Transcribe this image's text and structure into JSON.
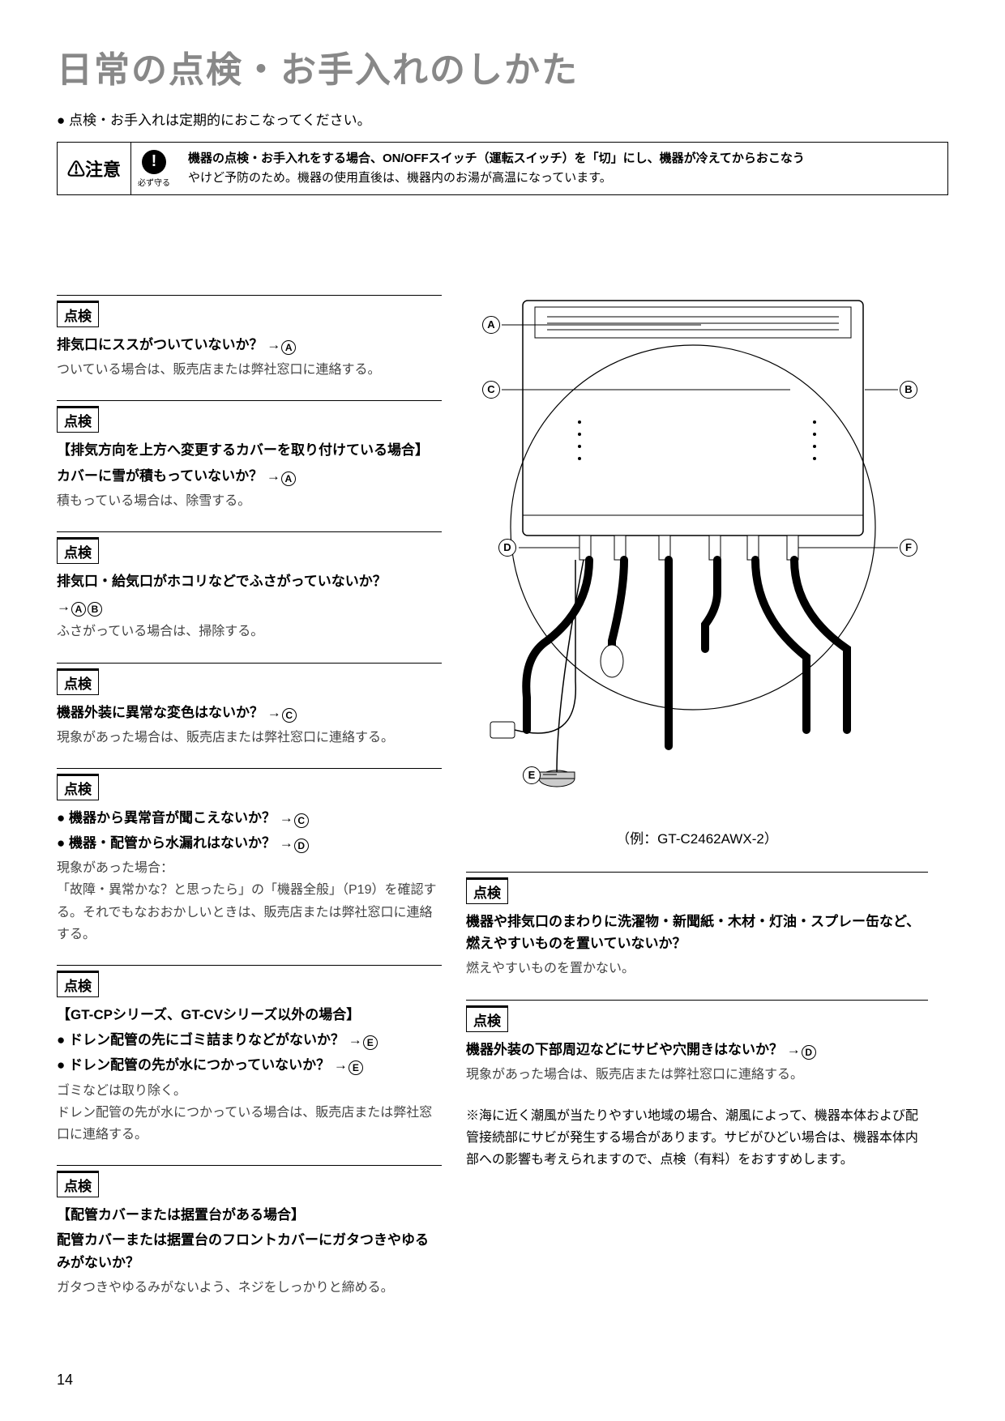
{
  "title": "日常の点検・お手入れのしかた",
  "intro": "● 点検・お手入れは定期的におこなってください。",
  "caution": {
    "label": "⚠注意",
    "icon": "!",
    "icon_label": "必ず守る",
    "line1": "機器の点検・お手入れをする場合、ON/OFFスイッチ（運転スイッチ）を「切」にし、機器が冷えてからおこなう",
    "line2": "やけど予防のため。機器の使用直後は、機器内のお湯が高温になっています。"
  },
  "tenken_tag": "点検",
  "left": [
    {
      "title": "排気口にススがついていないか？ →",
      "refs": [
        "A"
      ],
      "body": "ついている場合は、販売店または弊社窓口に連絡する。"
    },
    {
      "pre": "【排気方向を上方へ変更するカバーを取り付けている場合】",
      "title": "カバーに雪が積もっていないか？ →",
      "refs": [
        "A"
      ],
      "body": "積もっている場合は、除雪する。"
    },
    {
      "title": "排気口・給気口がホコリなどでふさがっていないか？",
      "title2": "→",
      "refs": [
        "A",
        "B"
      ],
      "body": "ふさがっている場合は、掃除する。"
    },
    {
      "title": "機器外装に異常な変色はないか？ →",
      "refs": [
        "C"
      ],
      "body": "現象があった場合は、販売店または弊社窓口に連絡する。"
    },
    {
      "bullets": [
        {
          "t": "● 機器から異常音が聞こえないか？ →",
          "r": [
            "C"
          ]
        },
        {
          "t": "● 機器・配管から水漏れはないか？ →",
          "r": [
            "D"
          ]
        }
      ],
      "body": "現象があった場合：\n「故障・異常かな？と思ったら」の「機器全般」（P19）を確認する。それでもなおおかしいときは、販売店または弊社窓口に連絡する。"
    },
    {
      "pre": "【GT-CPシリーズ、GT-CVシリーズ以外の場合】",
      "bullets": [
        {
          "t": "● ドレン配管の先にゴミ詰まりなどがないか？ →",
          "r": [
            "E"
          ]
        },
        {
          "t": "● ドレン配管の先が水につかっていないか？ →",
          "r": [
            "E"
          ]
        }
      ],
      "body": "ゴミなどは取り除く。\nドレン配管の先が水につかっている場合は、販売店または弊社窓口に連絡する。"
    },
    {
      "pre": "【配管カバーまたは据置台がある場合】",
      "title": "配管カバーまたは据置台のフロントカバーにガタつきやゆるみがないか？",
      "body": "ガタつきやゆるみがないよう、ネジをしっかりと締める。"
    }
  ],
  "diagram": {
    "caption": "（例：GT-C2462AWX-2）",
    "labels": [
      "A",
      "B",
      "C",
      "D",
      "E",
      "F"
    ]
  },
  "right": [
    {
      "title": "機器や排気口のまわりに洗濯物・新聞紙・木材・灯油・スプレー缶など、燃えやすいものを置いていないか？",
      "body": "燃えやすいものを置かない。"
    },
    {
      "title": "機器外装の下部周辺などにサビや穴開きはないか？ →",
      "refs": [
        "D"
      ],
      "body": "現象があった場合は、販売店または弊社窓口に連絡する。"
    }
  ],
  "note": "※海に近く潮風が当たりやすい地域の場合、潮風によって、機器本体および配管接続部にサビが発生する場合があります。サビがひどい場合は、機器本体内部への影響も考えられますので、点検（有料）をおすすめします。",
  "page": "14"
}
